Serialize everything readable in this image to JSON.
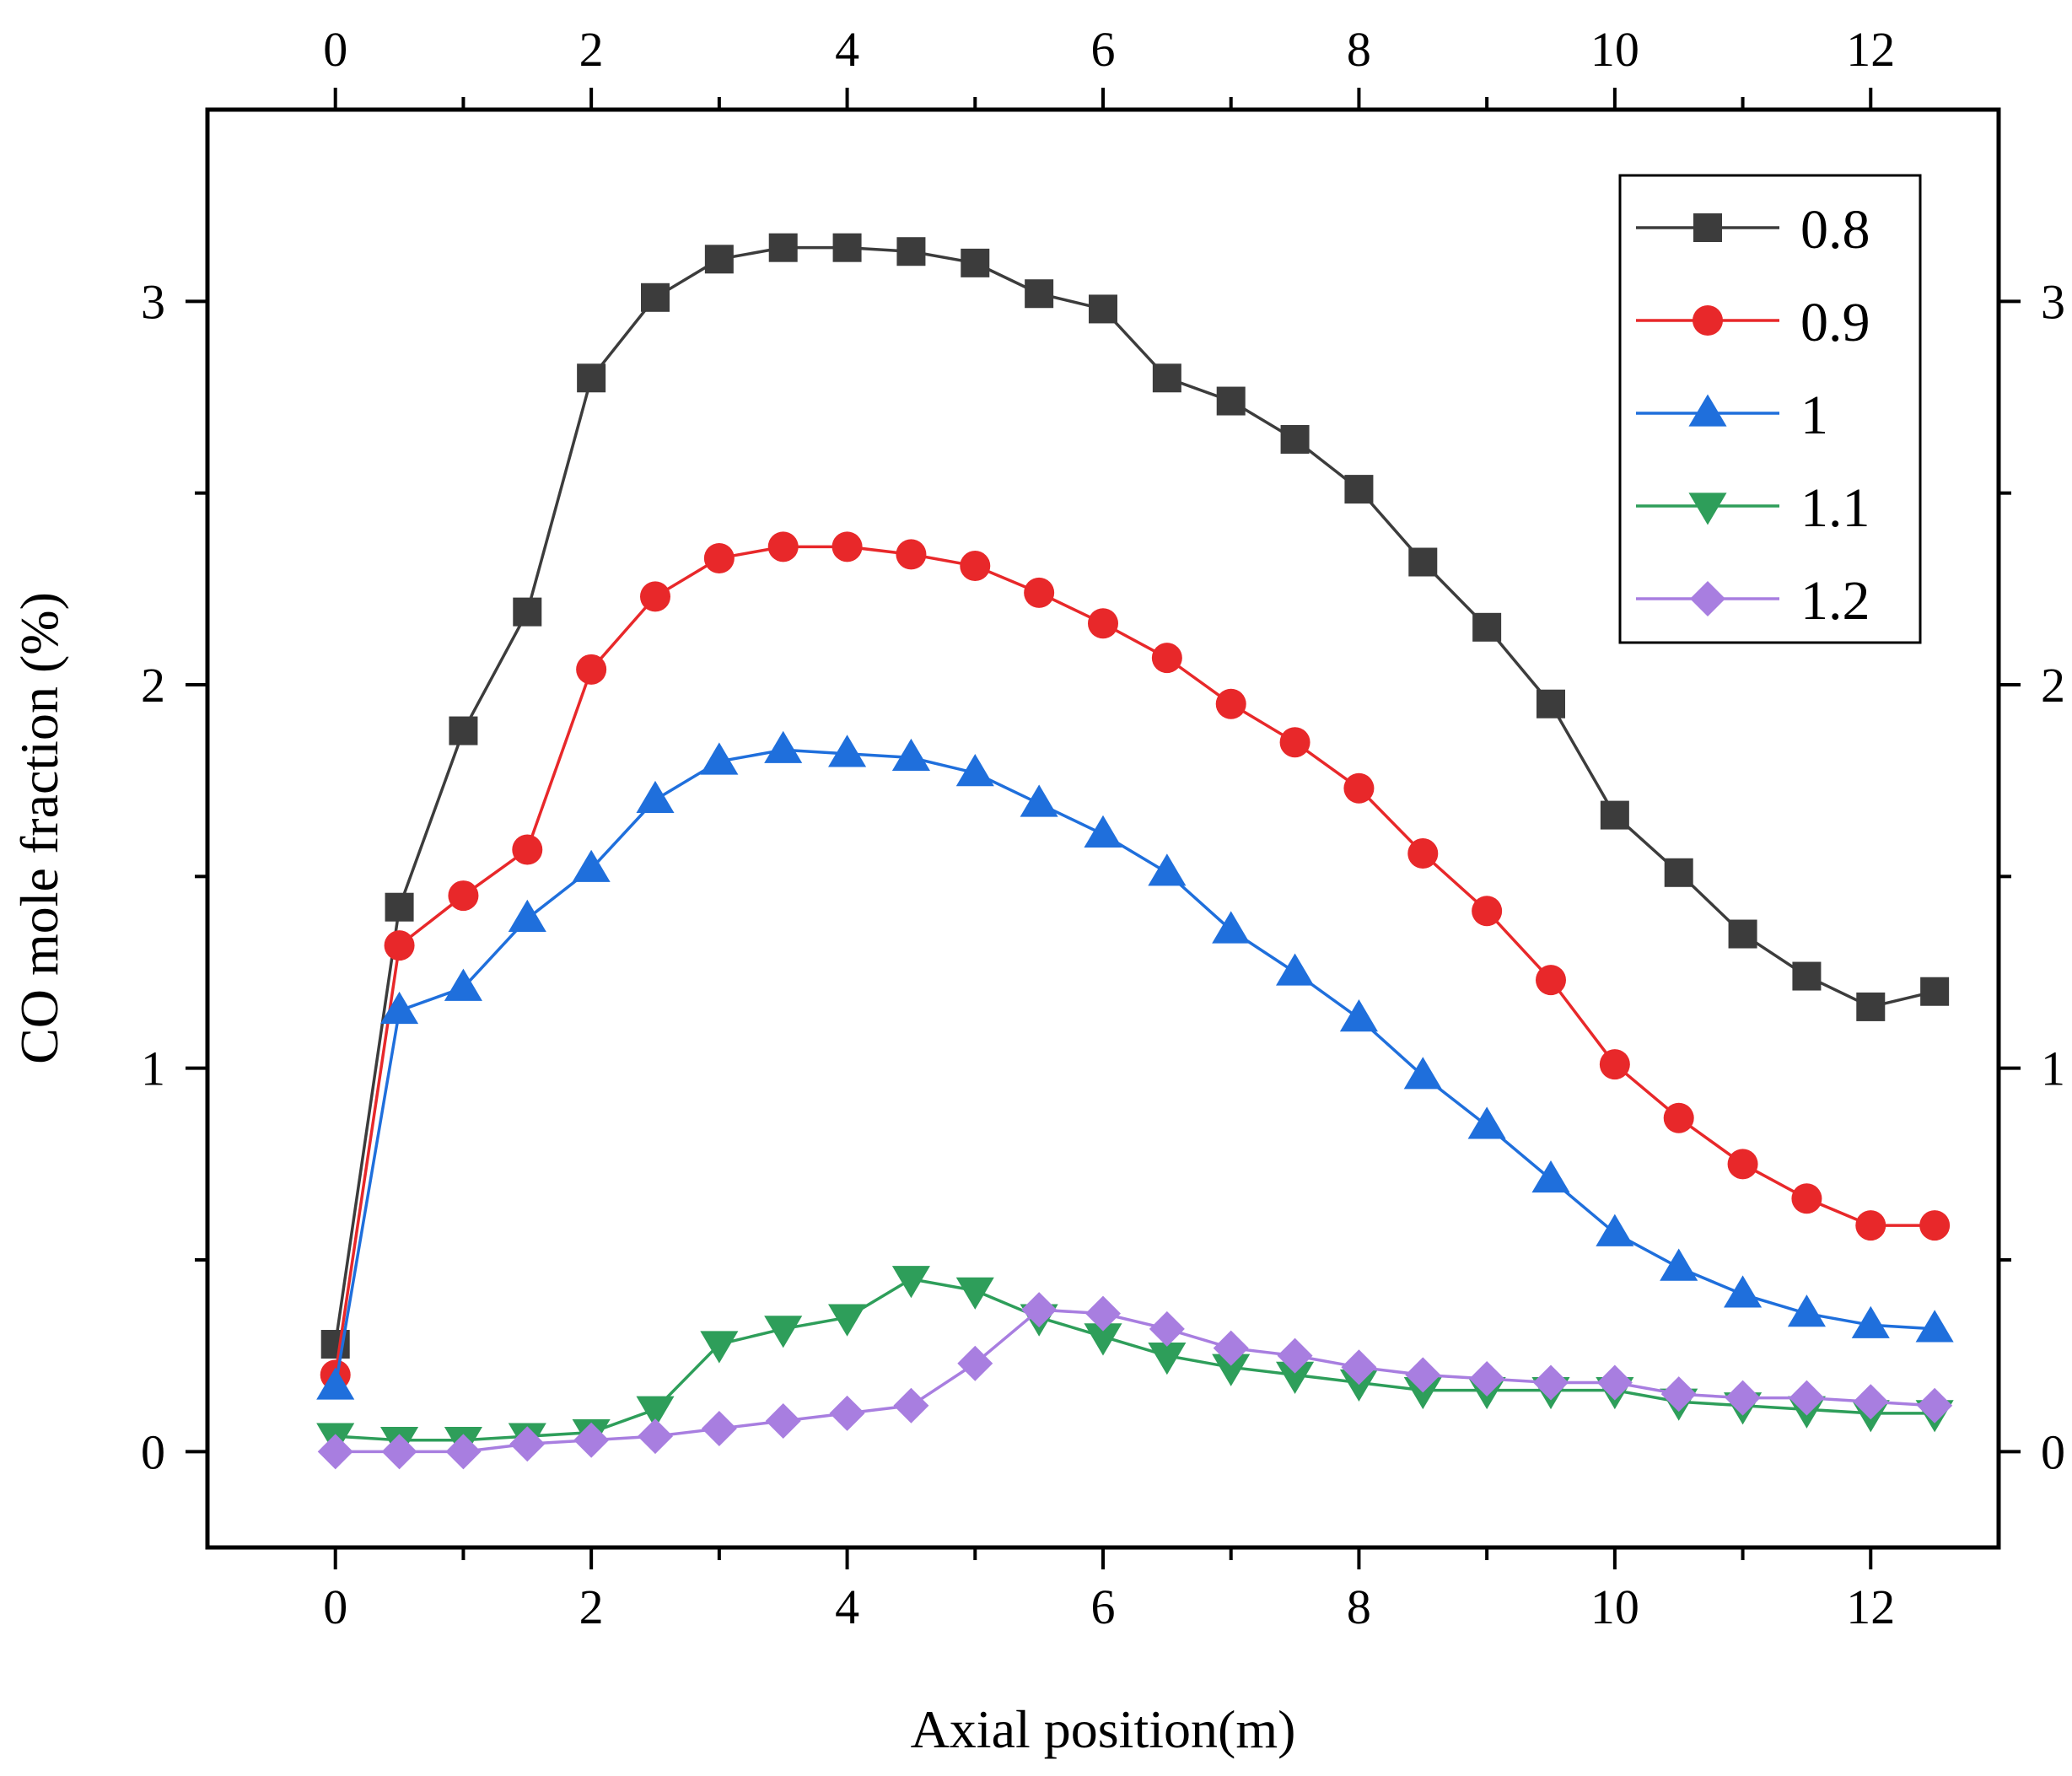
{
  "chart_data": {
    "type": "line",
    "title": "",
    "xlabel": "Axial position(m)",
    "ylabel": "CO mole fraction (%)",
    "xlim": [
      -1,
      13
    ],
    "ylim": [
      -0.25,
      3.5
    ],
    "x_ticks": [
      0,
      2,
      4,
      6,
      8,
      10,
      12
    ],
    "x_tick_labels": [
      "0",
      "2",
      "4",
      "6",
      "8",
      "10",
      "12"
    ],
    "y_ticks": [
      0,
      1,
      2,
      3
    ],
    "y_tick_labels": [
      "0",
      "1",
      "2",
      "3"
    ],
    "grid": false,
    "legend_position": "top-right",
    "x": [
      0,
      0.5,
      1,
      1.5,
      2,
      2.5,
      3,
      3.5,
      4,
      4.5,
      5,
      5.5,
      6,
      6.5,
      7,
      7.5,
      8,
      8.5,
      9,
      9.5,
      10,
      10.5,
      11,
      11.5,
      12,
      12.5
    ],
    "series": [
      {
        "name": "0.8",
        "color": "#3c3c3c",
        "marker": "square",
        "values": [
          0.28,
          1.42,
          1.88,
          2.19,
          2.8,
          3.01,
          3.11,
          3.14,
          3.14,
          3.13,
          3.1,
          3.02,
          2.98,
          2.8,
          2.74,
          2.64,
          2.51,
          2.32,
          2.15,
          1.95,
          1.66,
          1.51,
          1.35,
          1.24,
          1.16,
          1.2
        ]
      },
      {
        "name": "0.9",
        "color": "#e8282a",
        "marker": "circle",
        "values": [
          0.2,
          1.32,
          1.45,
          1.57,
          2.04,
          2.23,
          2.33,
          2.36,
          2.36,
          2.34,
          2.31,
          2.24,
          2.16,
          2.07,
          1.95,
          1.85,
          1.73,
          1.56,
          1.41,
          1.23,
          1.01,
          0.87,
          0.75,
          0.66,
          0.59,
          0.59
        ]
      },
      {
        "name": "1",
        "color": "#1f6fdc",
        "marker": "triangle-up",
        "values": [
          0.17,
          1.15,
          1.21,
          1.39,
          1.52,
          1.7,
          1.8,
          1.83,
          1.82,
          1.81,
          1.77,
          1.69,
          1.61,
          1.51,
          1.36,
          1.25,
          1.13,
          0.98,
          0.85,
          0.71,
          0.57,
          0.48,
          0.41,
          0.36,
          0.33,
          0.32
        ]
      },
      {
        "name": "1.1",
        "color": "#2e9e5a",
        "marker": "triangle-down",
        "values": [
          0.04,
          0.03,
          0.03,
          0.04,
          0.05,
          0.11,
          0.28,
          0.32,
          0.35,
          0.45,
          0.42,
          0.35,
          0.3,
          0.25,
          0.22,
          0.2,
          0.18,
          0.16,
          0.16,
          0.16,
          0.16,
          0.13,
          0.12,
          0.11,
          0.1,
          0.1
        ]
      },
      {
        "name": "1.2",
        "color": "#a87ee0",
        "marker": "diamond",
        "values": [
          0.0,
          0.0,
          0.0,
          0.02,
          0.03,
          0.04,
          0.06,
          0.08,
          0.1,
          0.12,
          0.23,
          0.37,
          0.36,
          0.32,
          0.27,
          0.25,
          0.22,
          0.2,
          0.19,
          0.18,
          0.18,
          0.15,
          0.14,
          0.14,
          0.13,
          0.12
        ]
      }
    ]
  }
}
